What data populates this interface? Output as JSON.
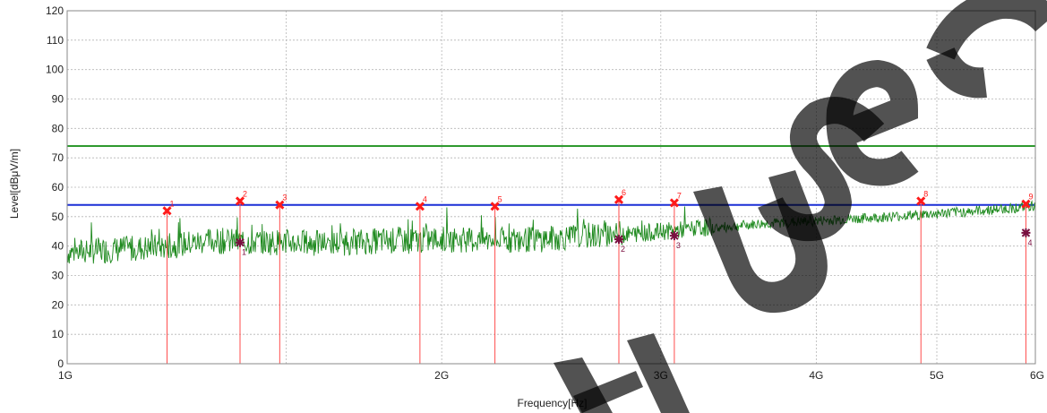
{
  "chart_data": {
    "type": "line",
    "xlabel": "Frequency[Hz]",
    "ylabel": "Level[dBμV/m]",
    "x_scale": "log",
    "xlim": [
      1000000000,
      6000000000
    ],
    "ylim": [
      0,
      120
    ],
    "grid": true,
    "y_ticks": [
      0,
      10,
      20,
      30,
      40,
      50,
      60,
      70,
      80,
      90,
      100,
      110,
      120
    ],
    "x_ticks": [
      {
        "value": 1000000000,
        "label": "1G"
      },
      {
        "value": 2000000000,
        "label": "2G"
      },
      {
        "value": 3000000000,
        "label": "3G"
      },
      {
        "value": 4000000000,
        "label": "4G"
      },
      {
        "value": 5000000000,
        "label": "5G"
      },
      {
        "value": 6000000000,
        "label": "6G"
      }
    ],
    "limit_lines": [
      {
        "level": 74,
        "color": "#2f9a2f"
      },
      {
        "level": 54,
        "color": "#1a2fd6"
      }
    ],
    "trace": {
      "color": "#1f8a1f",
      "x": [
        1000000000,
        1100000000,
        1200000000,
        1300000000,
        1400000000,
        1500000000,
        1600000000,
        1700000000,
        1800000000,
        1900000000,
        2000000000,
        2200000000,
        2400000000,
        2600000000,
        2800000000,
        3000000000,
        3200000000,
        3400000000,
        3600000000,
        3800000000,
        4000000000,
        4400000000,
        4800000000,
        5200000000,
        5600000000,
        6000000000
      ],
      "y": [
        36.5,
        37.5,
        38.5,
        40.5,
        40.0,
        40.0,
        39.5,
        40.0,
        40.5,
        40.5,
        41.0,
        40.5,
        41.0,
        42.0,
        43.0,
        44.0,
        45.0,
        46.0,
        47.0,
        47.5,
        48.0,
        49.0,
        50.0,
        51.0,
        52.0,
        53.0
      ]
    },
    "peak_markers": [
      {
        "label": "1",
        "x": 1203000000,
        "y": 52.0
      },
      {
        "label": "2",
        "x": 1377000000,
        "y": 55.3
      },
      {
        "label": "3",
        "x": 1482000000,
        "y": 54.0
      },
      {
        "label": "4",
        "x": 1921000000,
        "y": 53.5
      },
      {
        "label": "5",
        "x": 2207000000,
        "y": 53.5
      },
      {
        "label": "6",
        "x": 2776000000,
        "y": 55.8
      },
      {
        "label": "7",
        "x": 3076000000,
        "y": 54.7
      },
      {
        "label": "8",
        "x": 4855000000,
        "y": 55.3
      },
      {
        "label": "9",
        "x": 5896000000,
        "y": 54.3
      }
    ],
    "average_markers": [
      {
        "label": "1",
        "x": 1377000000,
        "y": 41.2
      },
      {
        "label": "2",
        "x": 2776000000,
        "y": 42.3
      },
      {
        "label": "3",
        "x": 3076000000,
        "y": 43.5
      },
      {
        "label": "4",
        "x": 5896000000,
        "y": 44.5
      }
    ],
    "peak_color": "#ff1a1a",
    "average_color": "#7a1040",
    "marker_line_color": "#ff4d4d"
  },
  "watermark": {
    "text": "H Use O",
    "color": "#000000"
  }
}
